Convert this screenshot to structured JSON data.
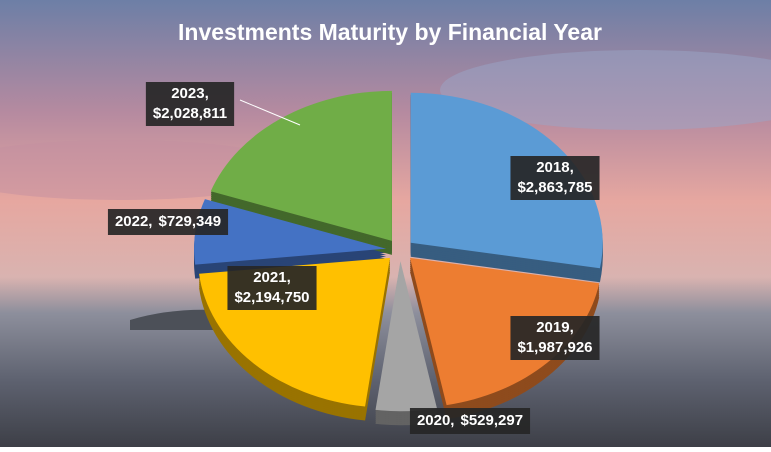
{
  "chart_data": {
    "type": "pie",
    "title": "Investments Maturity by Financial Year",
    "categories": [
      "2018,",
      "2019,",
      "2020,",
      "2021,",
      "2022,",
      "2023,"
    ],
    "values": [
      2863785,
      1987926,
      529297,
      2194750,
      729349,
      2028811
    ],
    "value_labels": [
      "$2,863,785",
      "$1,987,926",
      "$529,297",
      "$2,194,750",
      "$729,349",
      "$2,028,811"
    ],
    "colors": [
      "#5b9bd5",
      "#ed7d31",
      "#a5a5a5",
      "#ffc000",
      "#4472c4",
      "#70ad47"
    ]
  }
}
